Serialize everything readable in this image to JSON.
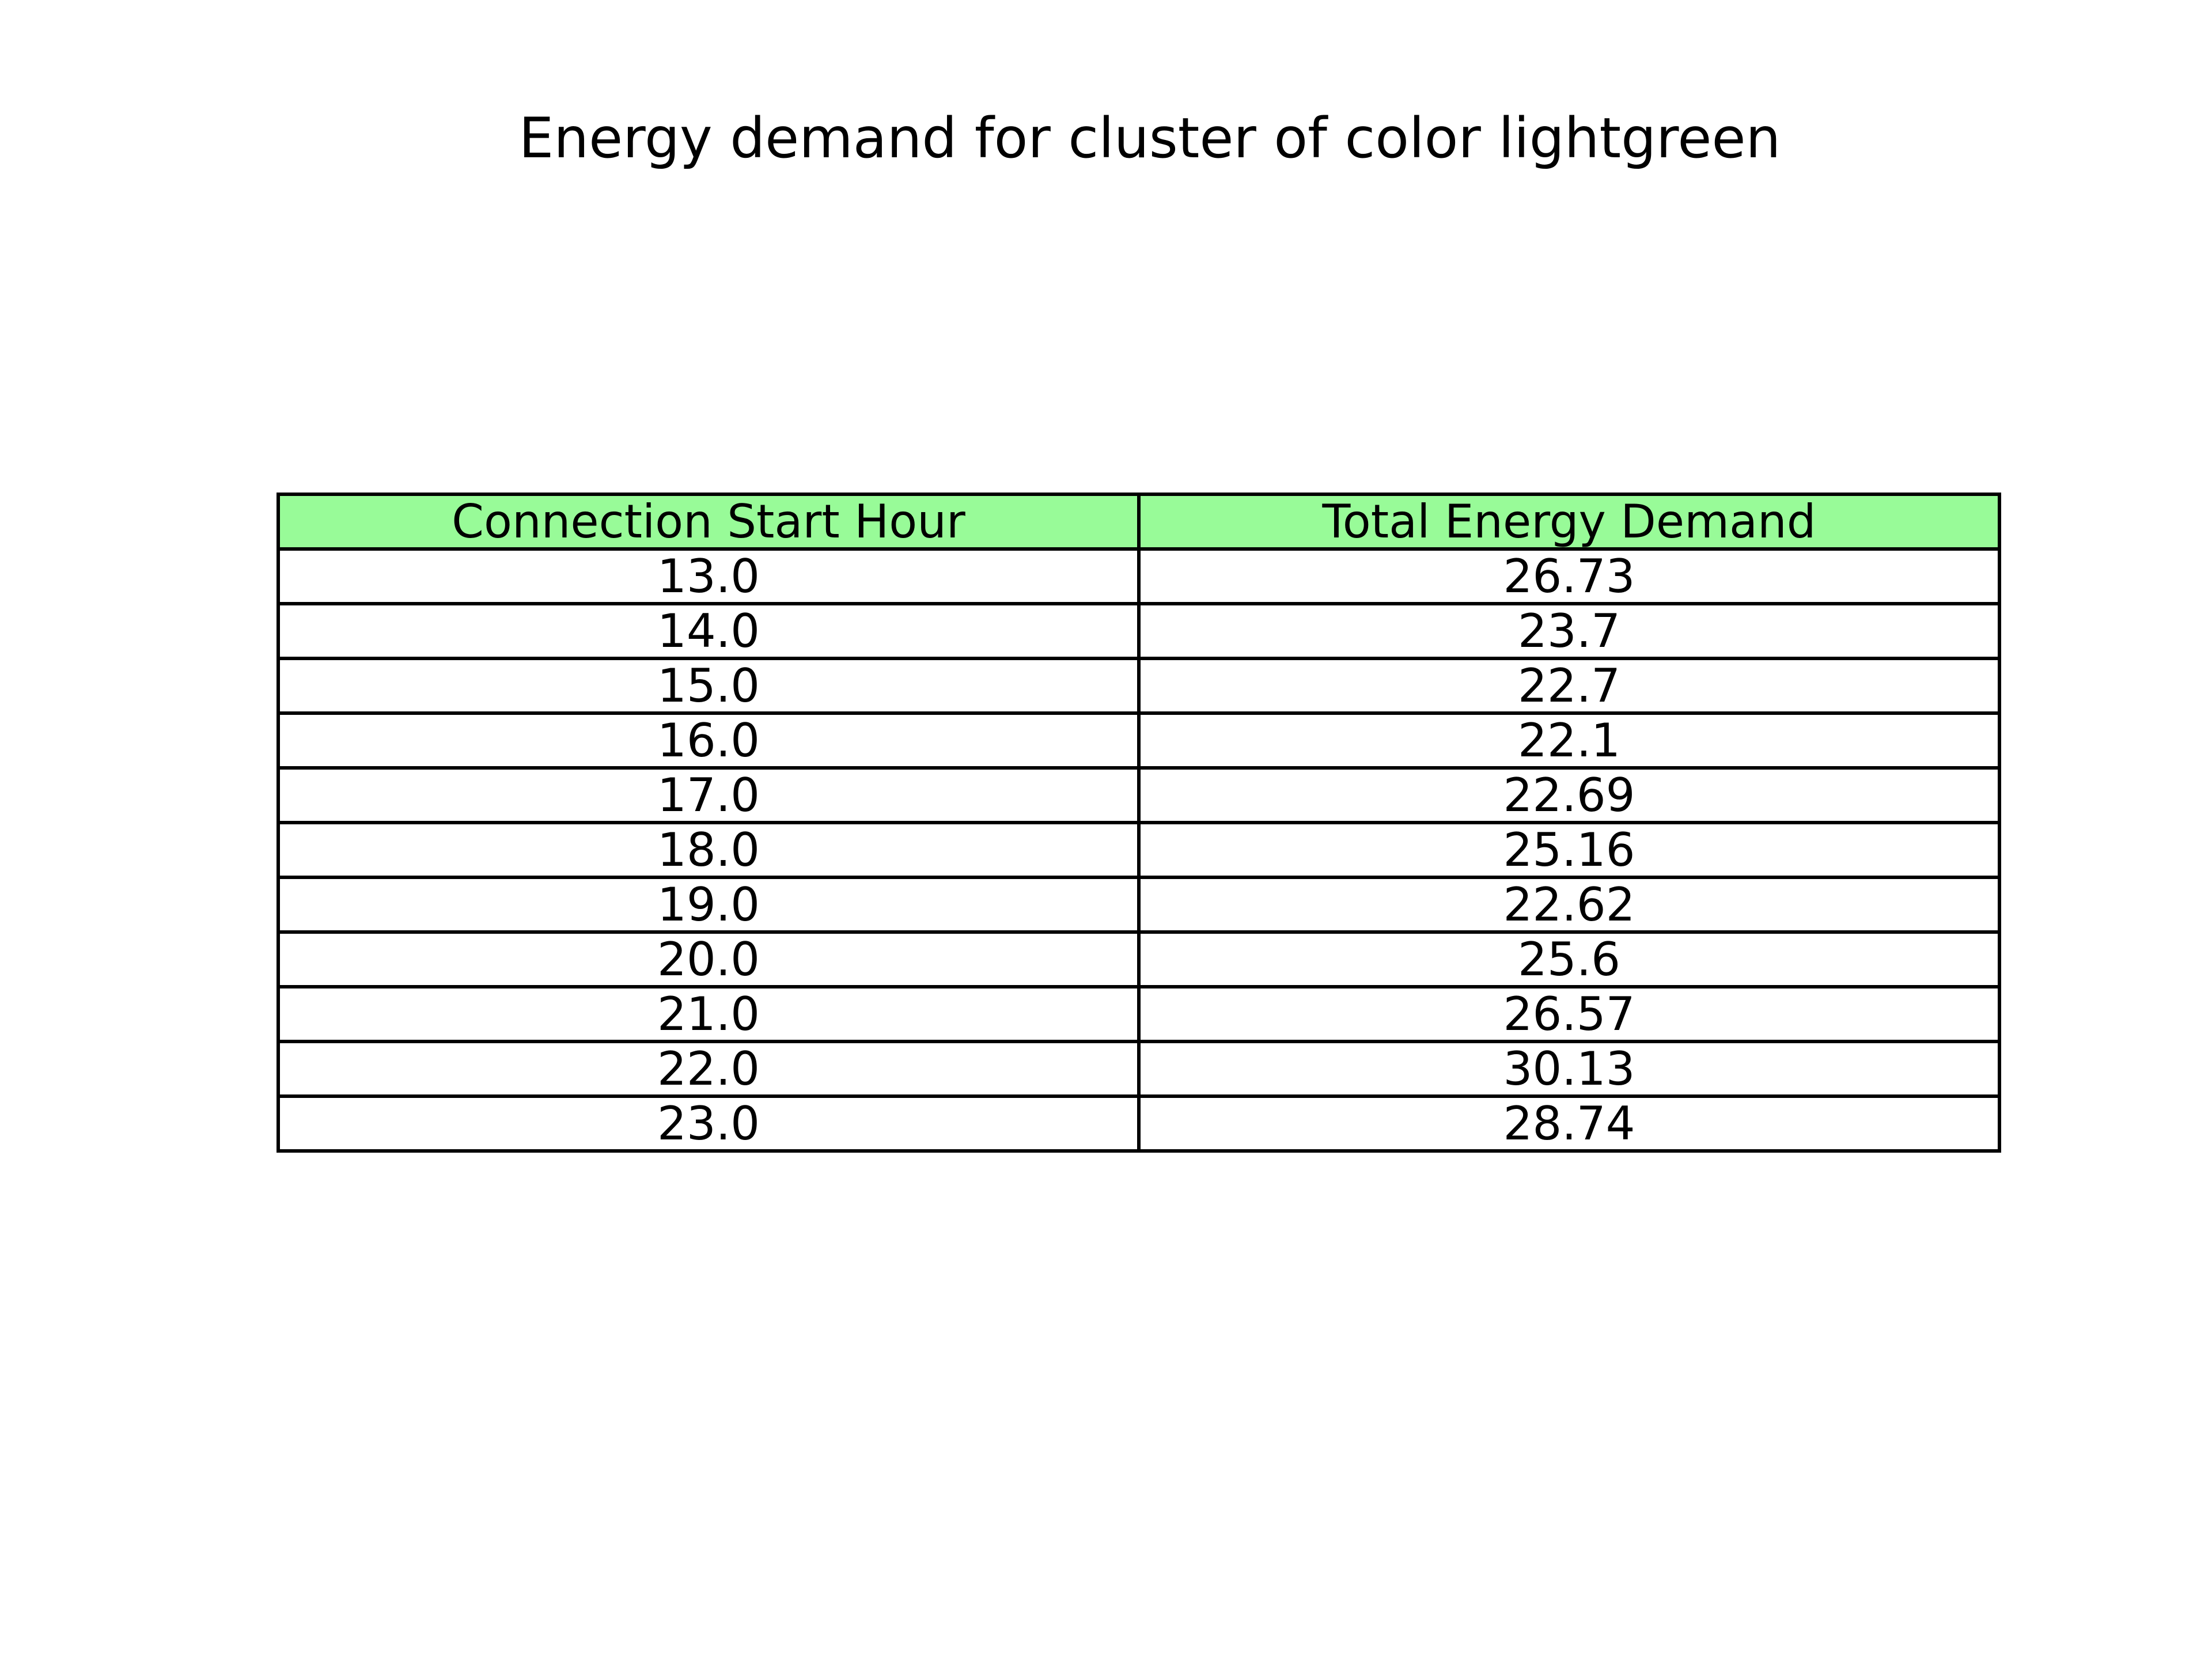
{
  "title": "Energy demand for cluster of color lightgreen",
  "header_color": "#98fb98",
  "chart_data": {
    "type": "table",
    "title": "Energy demand for cluster of color lightgreen",
    "columns": [
      "Connection Start Hour",
      "Total Energy Demand"
    ],
    "rows": [
      [
        "13.0",
        "26.73"
      ],
      [
        "14.0",
        "23.7"
      ],
      [
        "15.0",
        "22.7"
      ],
      [
        "16.0",
        "22.1"
      ],
      [
        "17.0",
        "22.69"
      ],
      [
        "18.0",
        "25.16"
      ],
      [
        "19.0",
        "22.62"
      ],
      [
        "20.0",
        "25.6"
      ],
      [
        "21.0",
        "26.57"
      ],
      [
        "22.0",
        "30.13"
      ],
      [
        "23.0",
        "28.74"
      ]
    ]
  }
}
